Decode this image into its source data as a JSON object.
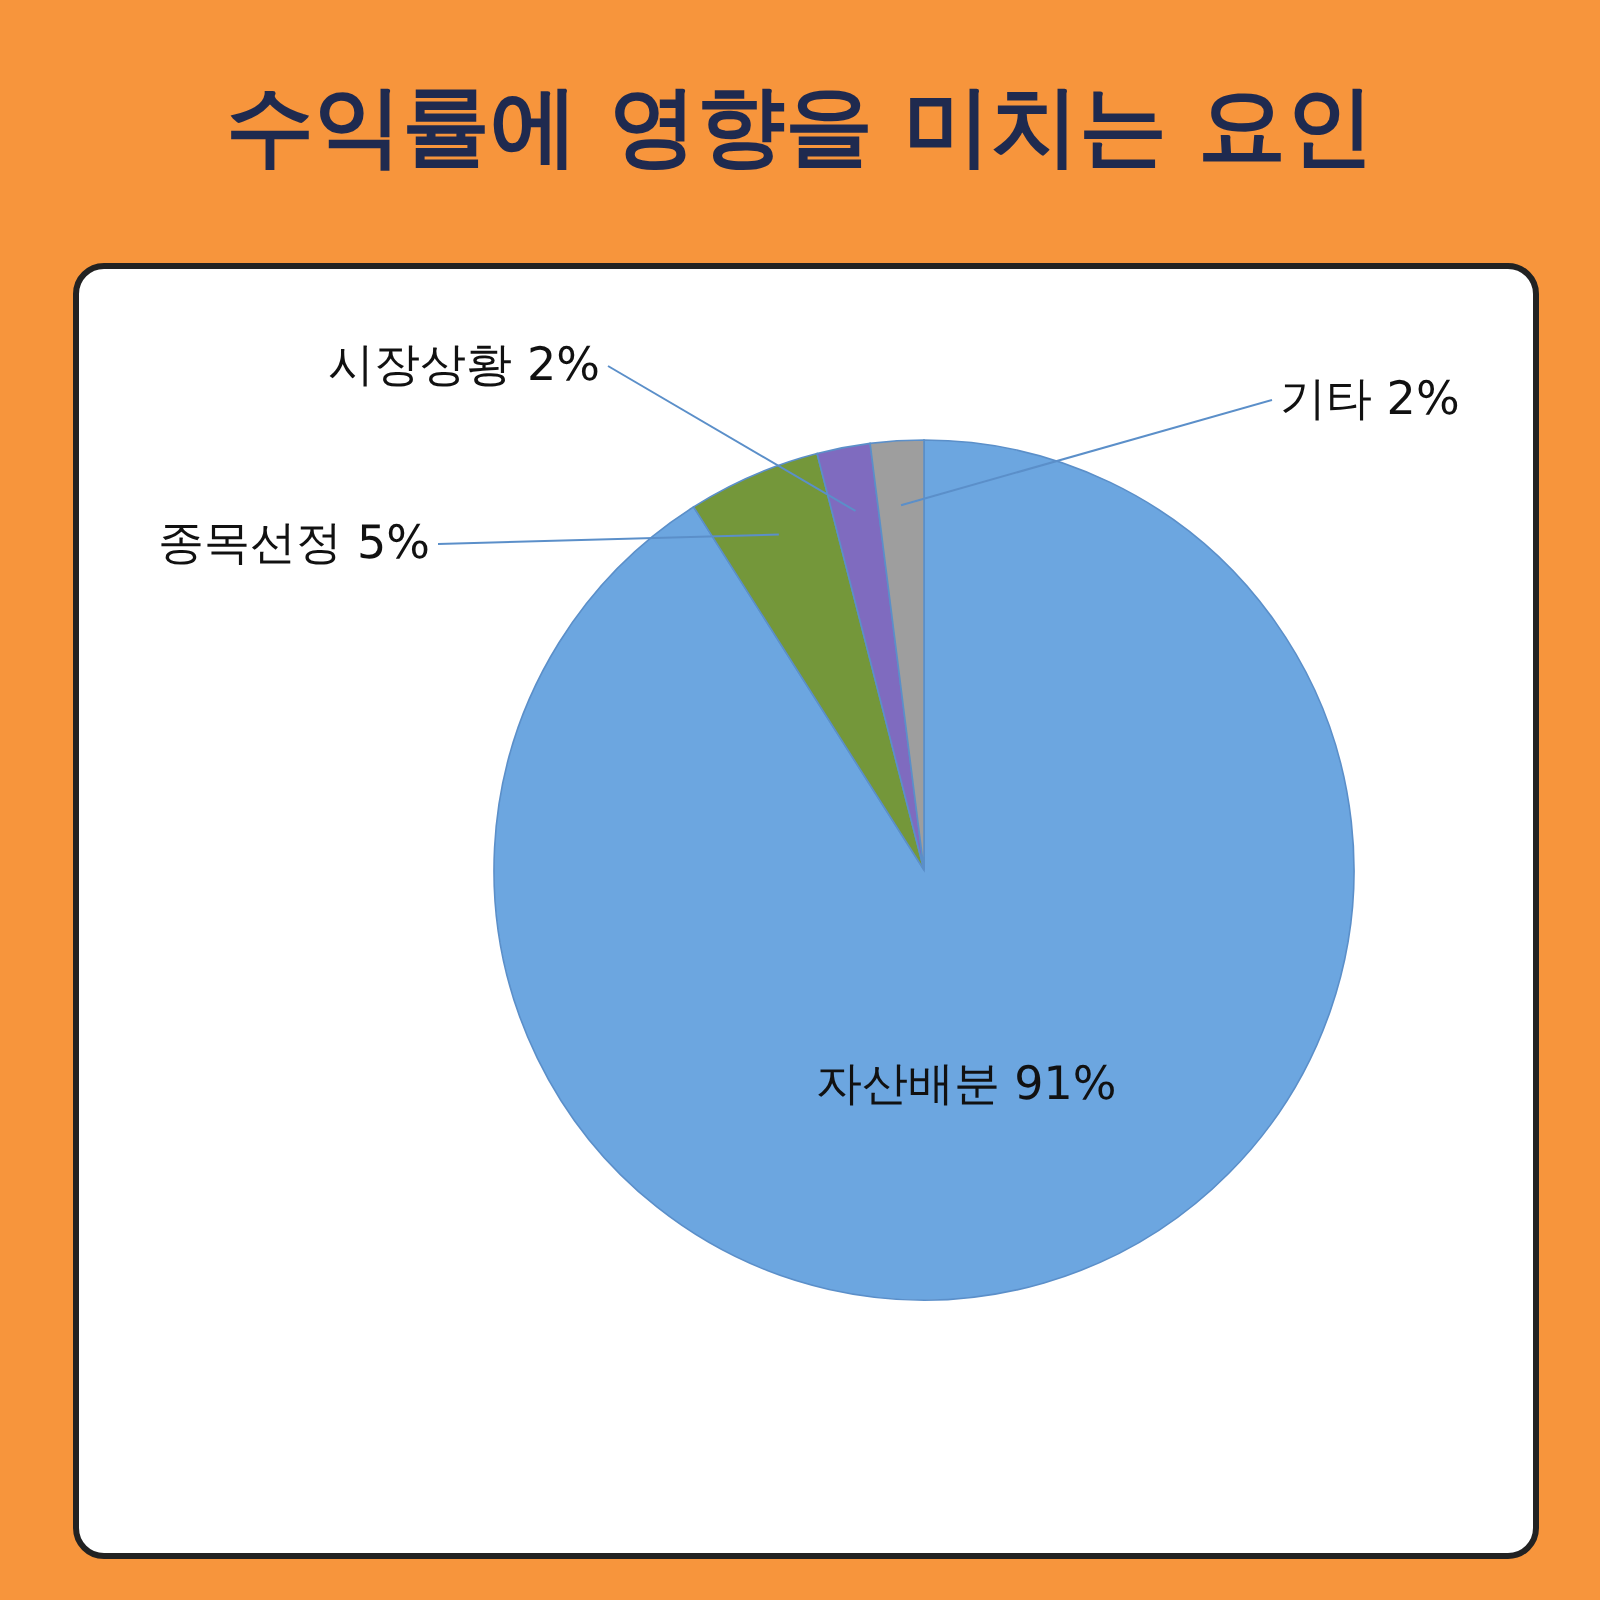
{
  "chart_data": {
    "type": "pie",
    "title": "수익률에 영향을 미치는 요인",
    "categories": [
      "자산배분",
      "종목선정",
      "시장상황",
      "기타"
    ],
    "values": [
      91,
      5,
      2,
      2
    ],
    "value_labels": [
      "91%",
      "5%",
      "2%",
      "2%"
    ],
    "colors": [
      "#6ca6e0",
      "#74973a",
      "#7f6bbf",
      "#9e9e9e"
    ]
  }
}
